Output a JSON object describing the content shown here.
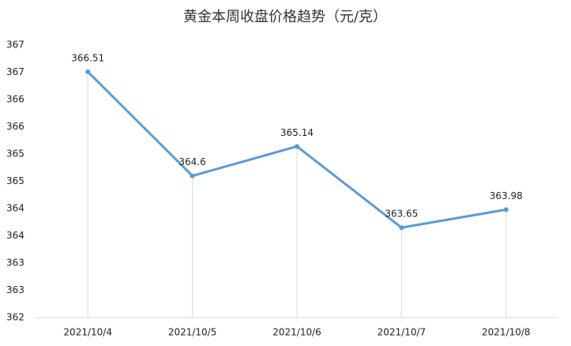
{
  "chart_data": {
    "type": "line",
    "title": "黄金本周收盘价格趋势（元/克）",
    "categories": [
      "2021/10/4",
      "2021/10/5",
      "2021/10/6",
      "2021/10/7",
      "2021/10/8"
    ],
    "values": [
      366.51,
      364.6,
      365.14,
      363.65,
      363.98
    ],
    "color": "#5b9bd5",
    "ylim": [
      362,
      367
    ],
    "yticks": [
      362,
      {
        "value": 362.5,
        "label": "363"
      },
      363,
      {
        "value": 363.5,
        "label": "364"
      },
      364,
      {
        "value": 364.5,
        "label": "365"
      },
      365,
      {
        "value": 365.5,
        "label": "366"
      },
      366,
      {
        "value": 366.5,
        "label": "367"
      },
      367
    ],
    "drop_lines": true
  }
}
